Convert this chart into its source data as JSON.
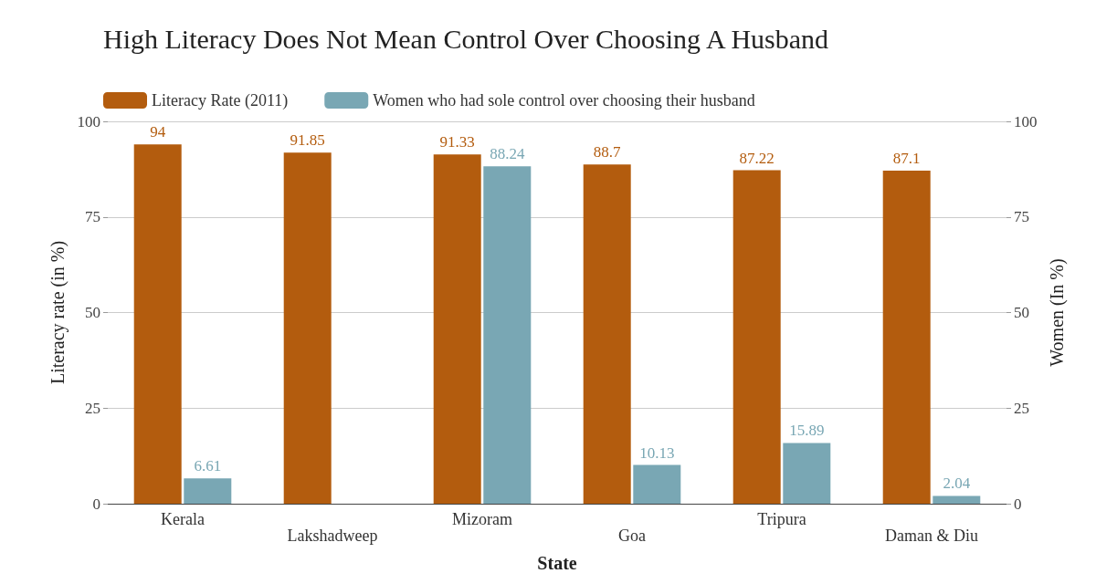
{
  "chart_data": {
    "type": "bar",
    "title": "High Literacy Does Not Mean Control Over Choosing A Husband",
    "xlabel": "State",
    "ylabel": "Literacy rate (in %)",
    "y2label": "Women (In %)",
    "categories": [
      "Kerala",
      "Lakshadweep",
      "Mizoram",
      "Goa",
      "Tripura",
      "Daman & Diu"
    ],
    "series": [
      {
        "name": "Literacy Rate (2011)",
        "color": "#b35c0e",
        "values": [
          94,
          91.85,
          91.33,
          88.7,
          87.22,
          87.1
        ]
      },
      {
        "name": "Women who had sole control over choosing their husband",
        "color": "#79a7b4",
        "axis": "y2",
        "values": [
          6.61,
          null,
          88.24,
          10.13,
          15.89,
          2.04
        ]
      }
    ],
    "ylim": [
      0,
      100
    ],
    "yticks": [
      0,
      25,
      50,
      75,
      100
    ],
    "y2lim": [
      0,
      100
    ],
    "y2ticks": [
      0,
      25,
      50,
      75,
      100
    ],
    "grid": "y",
    "legend": "top left",
    "data_labels": true
  }
}
